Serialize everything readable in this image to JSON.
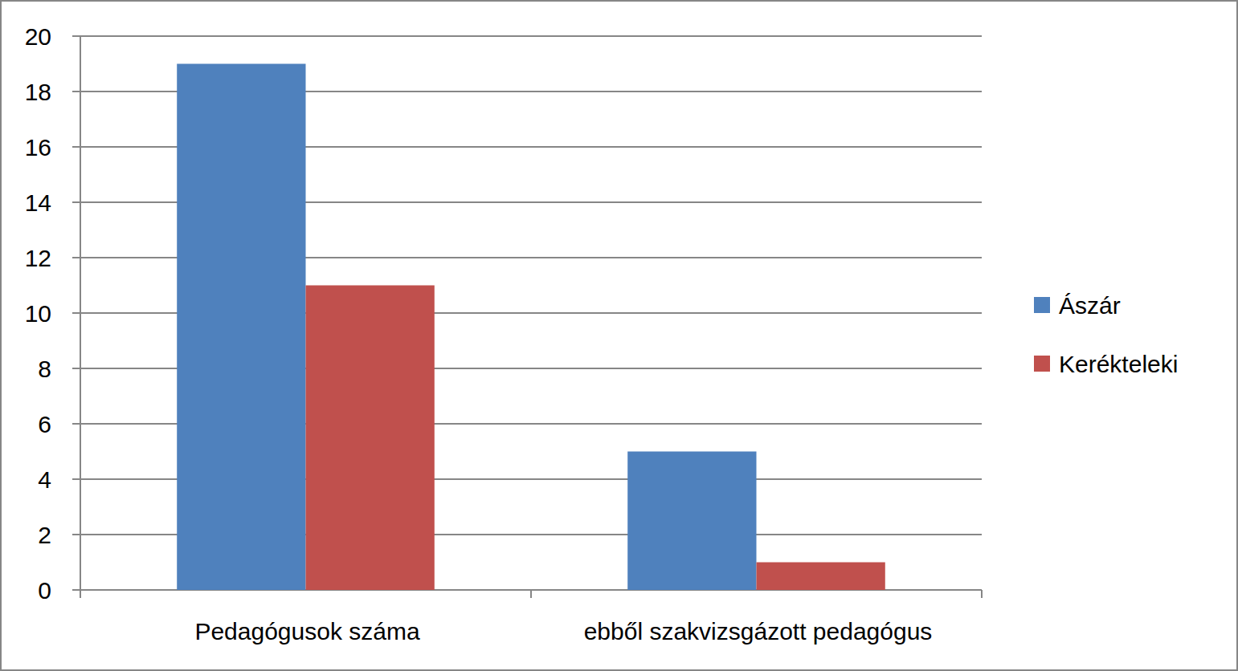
{
  "chart_data": {
    "type": "bar",
    "categories": [
      "Pedagógusok száma",
      "ebből szakvizsgázott pedagógus"
    ],
    "series": [
      {
        "name": "Ászár",
        "color": "#4f81bd",
        "values": [
          19,
          5
        ]
      },
      {
        "name": "Kerékteleki",
        "color": "#c0504d",
        "values": [
          11,
          1
        ]
      }
    ],
    "ylim": [
      0,
      20
    ],
    "yticks": [
      0,
      2,
      4,
      6,
      8,
      10,
      12,
      14,
      16,
      18,
      20
    ],
    "grid": true,
    "legend": "right"
  }
}
